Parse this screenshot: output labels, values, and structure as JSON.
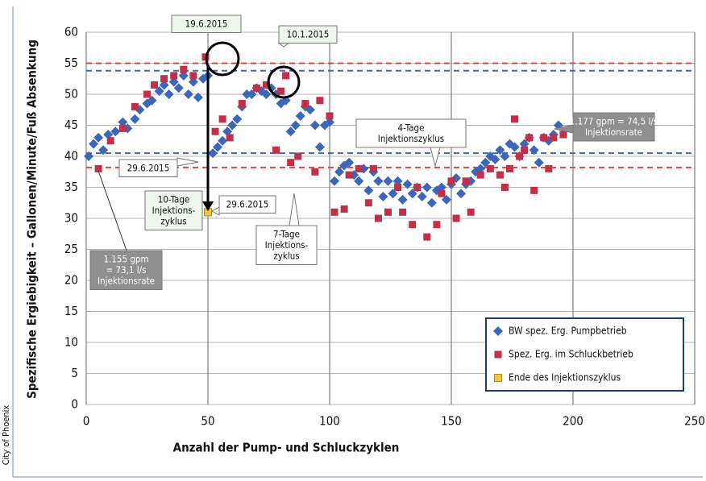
{
  "chart_data": {
    "type": "scatter",
    "source": "City of Phoenix",
    "xlabel": "Anzahl der Pump- und Schluckzyklen",
    "ylabel": "Spezifische Ergiebigkeit – Gallonen/Minute/Fuß Absenkung",
    "xlim": [
      0,
      250
    ],
    "xticks": [
      0,
      50,
      100,
      150,
      200,
      250
    ],
    "ylim": [
      0,
      60
    ],
    "yticks": [
      0,
      5,
      10,
      15,
      20,
      25,
      30,
      35,
      40,
      45,
      50,
      55,
      60
    ],
    "grid": true,
    "legend": "lower right",
    "series": [
      {
        "name": "BW spez. Erg. Pumpbetrieb",
        "color": "#3a67b8",
        "marker": "diamond",
        "x": [
          1,
          3,
          5,
          7,
          9,
          12,
          15,
          17,
          20,
          22,
          25,
          27,
          30,
          32,
          34,
          36,
          38,
          40,
          42,
          44,
          46,
          48,
          50,
          52,
          54,
          56,
          58,
          60,
          62,
          64,
          66,
          68,
          70,
          72,
          74,
          76,
          78,
          80,
          82,
          84,
          86,
          88,
          90,
          92,
          94,
          96,
          98,
          100,
          102,
          104,
          106,
          108,
          110,
          112,
          114,
          116,
          118,
          120,
          122,
          124,
          126,
          128,
          130,
          132,
          134,
          136,
          138,
          140,
          142,
          144,
          146,
          148,
          150,
          152,
          154,
          156,
          158,
          160,
          162,
          164,
          166,
          168,
          170,
          172,
          174,
          176,
          178,
          180,
          182,
          184,
          186,
          188,
          190,
          192,
          194
        ],
        "values": [
          40,
          42,
          43,
          41,
          43.5,
          44,
          45.5,
          44.5,
          46,
          47.5,
          48.5,
          49,
          50.5,
          51.5,
          50,
          52,
          51,
          53,
          50,
          52,
          49.5,
          52.5,
          53,
          40.5,
          41.5,
          42.5,
          44,
          45,
          46,
          48,
          50,
          50,
          51,
          50.5,
          50,
          51,
          50,
          48.5,
          49,
          44,
          45,
          46.5,
          48,
          47.5,
          45,
          41.5,
          45,
          45.5,
          36,
          37.5,
          38.5,
          39,
          37,
          36,
          38,
          34.5,
          37.5,
          36,
          33.5,
          36,
          34,
          36,
          33,
          35.5,
          34,
          35,
          33.5,
          35,
          32.5,
          34.5,
          35,
          33,
          35.5,
          36.5,
          34,
          35.5,
          36,
          37.5,
          38,
          39,
          40,
          39.5,
          41,
          40,
          42,
          41.5,
          40,
          42,
          43,
          41,
          39,
          43,
          42.5,
          43.5,
          45
        ]
      },
      {
        "name": "Spez. Erg. im Schluckbetrieb",
        "color": "#c12f48",
        "marker": "square",
        "x": [
          5,
          10,
          15,
          20,
          25,
          28,
          32,
          36,
          40,
          44,
          49,
          53,
          56,
          59,
          64,
          70,
          74,
          78,
          80,
          82,
          84,
          87,
          90,
          94,
          96,
          100,
          102,
          106,
          108,
          112,
          116,
          118,
          120,
          124,
          128,
          130,
          134,
          136,
          140,
          144,
          146,
          150,
          152,
          156,
          158,
          162,
          166,
          170,
          172,
          174,
          176,
          178,
          180,
          182,
          184,
          188,
          190,
          192,
          196
        ],
        "values": [
          38,
          42.5,
          44.5,
          48,
          50,
          51.5,
          52.5,
          53,
          54,
          53,
          56,
          44,
          46,
          43,
          48.5,
          51,
          51.5,
          41,
          50.5,
          53,
          39,
          40,
          48.5,
          37.5,
          49,
          46.5,
          31,
          31.5,
          37,
          38,
          32.5,
          38,
          30,
          31,
          35,
          31,
          29,
          35,
          27,
          29,
          34,
          36,
          30,
          36,
          31,
          37,
          38,
          37,
          35,
          38,
          46,
          40,
          41,
          43,
          34.5,
          43,
          38,
          43,
          43.5
        ]
      },
      {
        "name": "Ende des Injektionszyklus",
        "color": "#f5c63c",
        "marker": "square",
        "x": [
          50
        ],
        "values": [
          31
        ]
      }
    ],
    "reference_lines": [
      {
        "value": 55,
        "color": "#e8463c"
      },
      {
        "value": 53.8,
        "color": "#3a67b8"
      },
      {
        "value": 40.5,
        "color": "#3a67b8"
      },
      {
        "value": 38.2,
        "color": "#e8463c"
      }
    ],
    "annotations": [
      {
        "lines": [
          "19.6.2015"
        ],
        "fill": "#eef6ee"
      },
      {
        "lines": [
          "10.1.2015"
        ],
        "fill": "#eef6ee"
      },
      {
        "lines": [
          "4-Tage",
          "Injektionszyklus"
        ],
        "fill": "#ffffff"
      },
      {
        "lines": [
          "1.177 gpm = 74,5 l/s",
          "Injektionsrate"
        ],
        "fill": "#8f8f8f"
      },
      {
        "lines": [
          "29.6.2015"
        ],
        "fill": "#ffffff"
      },
      {
        "lines": [
          "10-Tage",
          "Injektions-",
          "zyklus"
        ],
        "fill": "#eef6ee"
      },
      {
        "lines": [
          "29.6.2015"
        ],
        "fill": "#ffffff"
      },
      {
        "lines": [
          "7-Tage",
          "Injektions-",
          "zyklus"
        ],
        "fill": "#ffffff"
      },
      {
        "lines": [
          "1.155 gpm",
          "= 73,1 l/s",
          "Injektionsrate"
        ],
        "fill": "#8f8f8f"
      }
    ]
  }
}
